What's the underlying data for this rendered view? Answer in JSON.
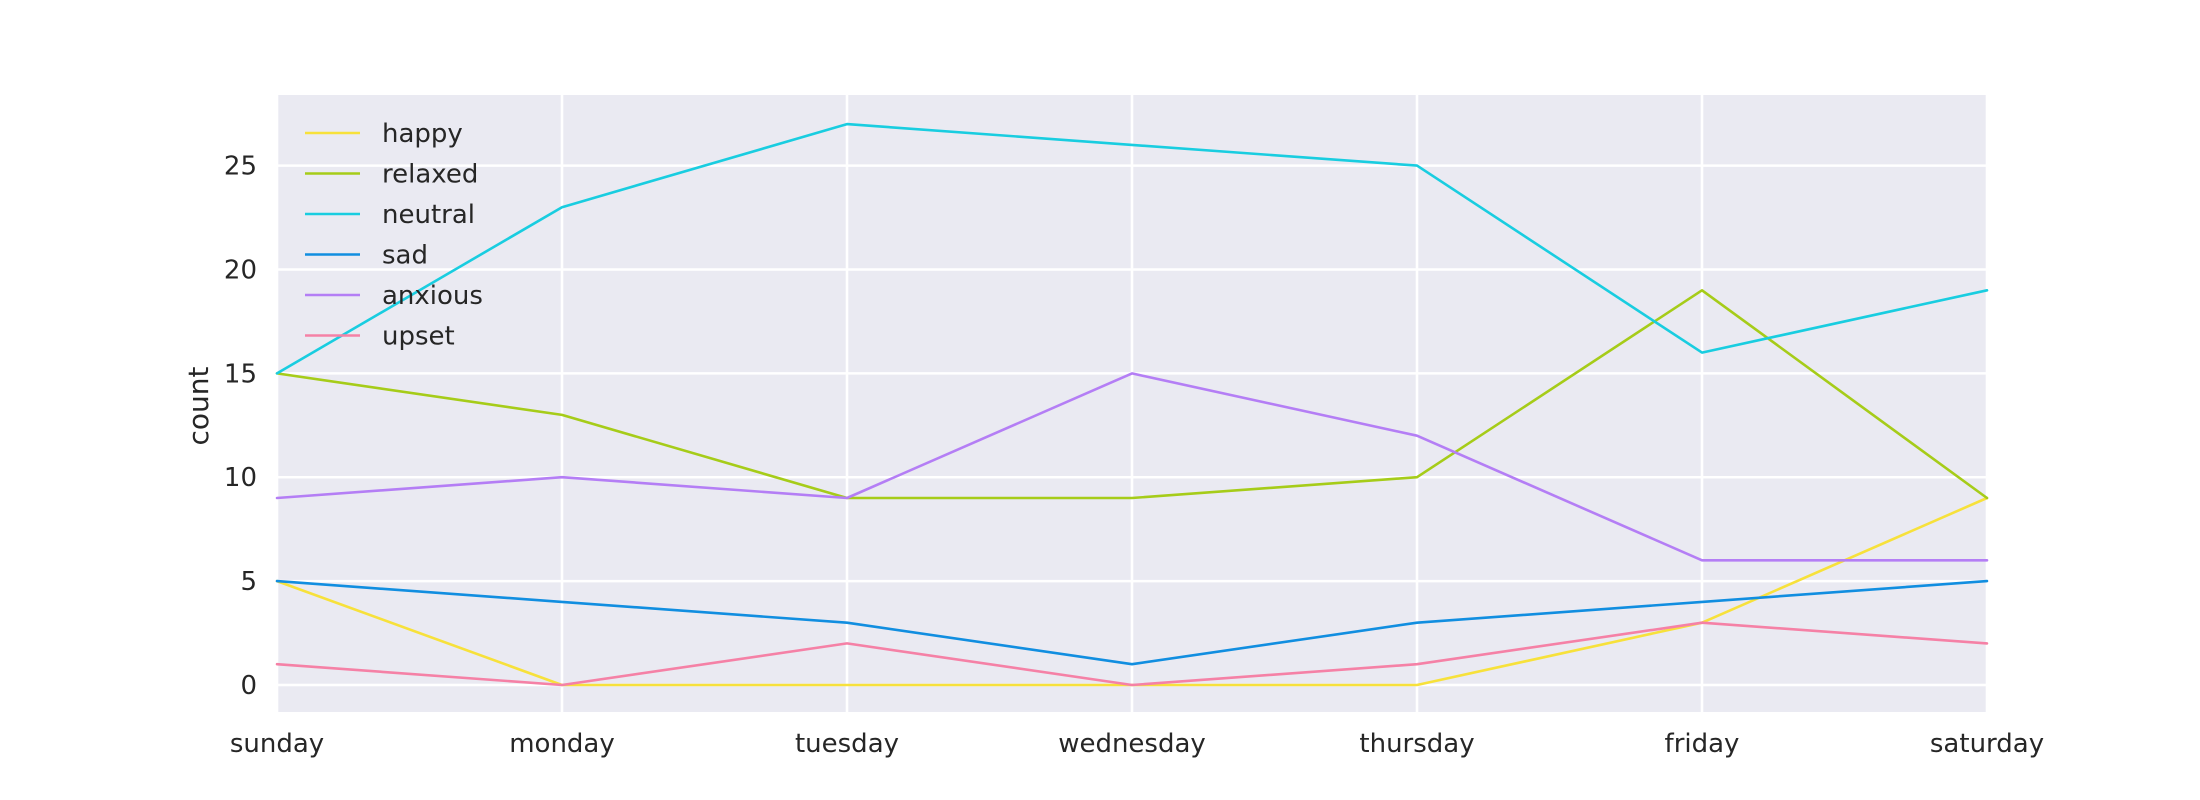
{
  "chart_data": {
    "type": "line",
    "title": "",
    "xlabel": "",
    "ylabel": "count",
    "categories": [
      "sunday",
      "monday",
      "tuesday",
      "wednesday",
      "thursday",
      "friday",
      "saturday"
    ],
    "ylim": [
      -1.3,
      28.4
    ],
    "yticks": [
      0,
      5,
      10,
      15,
      20,
      25
    ],
    "grid": true,
    "legend_position": "top-left",
    "series": [
      {
        "name": "happy",
        "color": "#f7e13b",
        "values": [
          5,
          0,
          0,
          0,
          0,
          3,
          9
        ]
      },
      {
        "name": "relaxed",
        "color": "#a6cc19",
        "values": [
          15,
          13,
          9,
          9,
          10,
          19,
          9
        ]
      },
      {
        "name": "neutral",
        "color": "#19cde0",
        "values": [
          15,
          23,
          27,
          26,
          25,
          16,
          19
        ]
      },
      {
        "name": "sad",
        "color": "#118ee0",
        "values": [
          5,
          4,
          3,
          1,
          3,
          4,
          5
        ]
      },
      {
        "name": "anxious",
        "color": "#b47ef5",
        "values": [
          9,
          10,
          9,
          15,
          12,
          6,
          6
        ]
      },
      {
        "name": "upset",
        "color": "#f581a6",
        "values": [
          1,
          0,
          2,
          0,
          1,
          3,
          2
        ]
      }
    ]
  }
}
